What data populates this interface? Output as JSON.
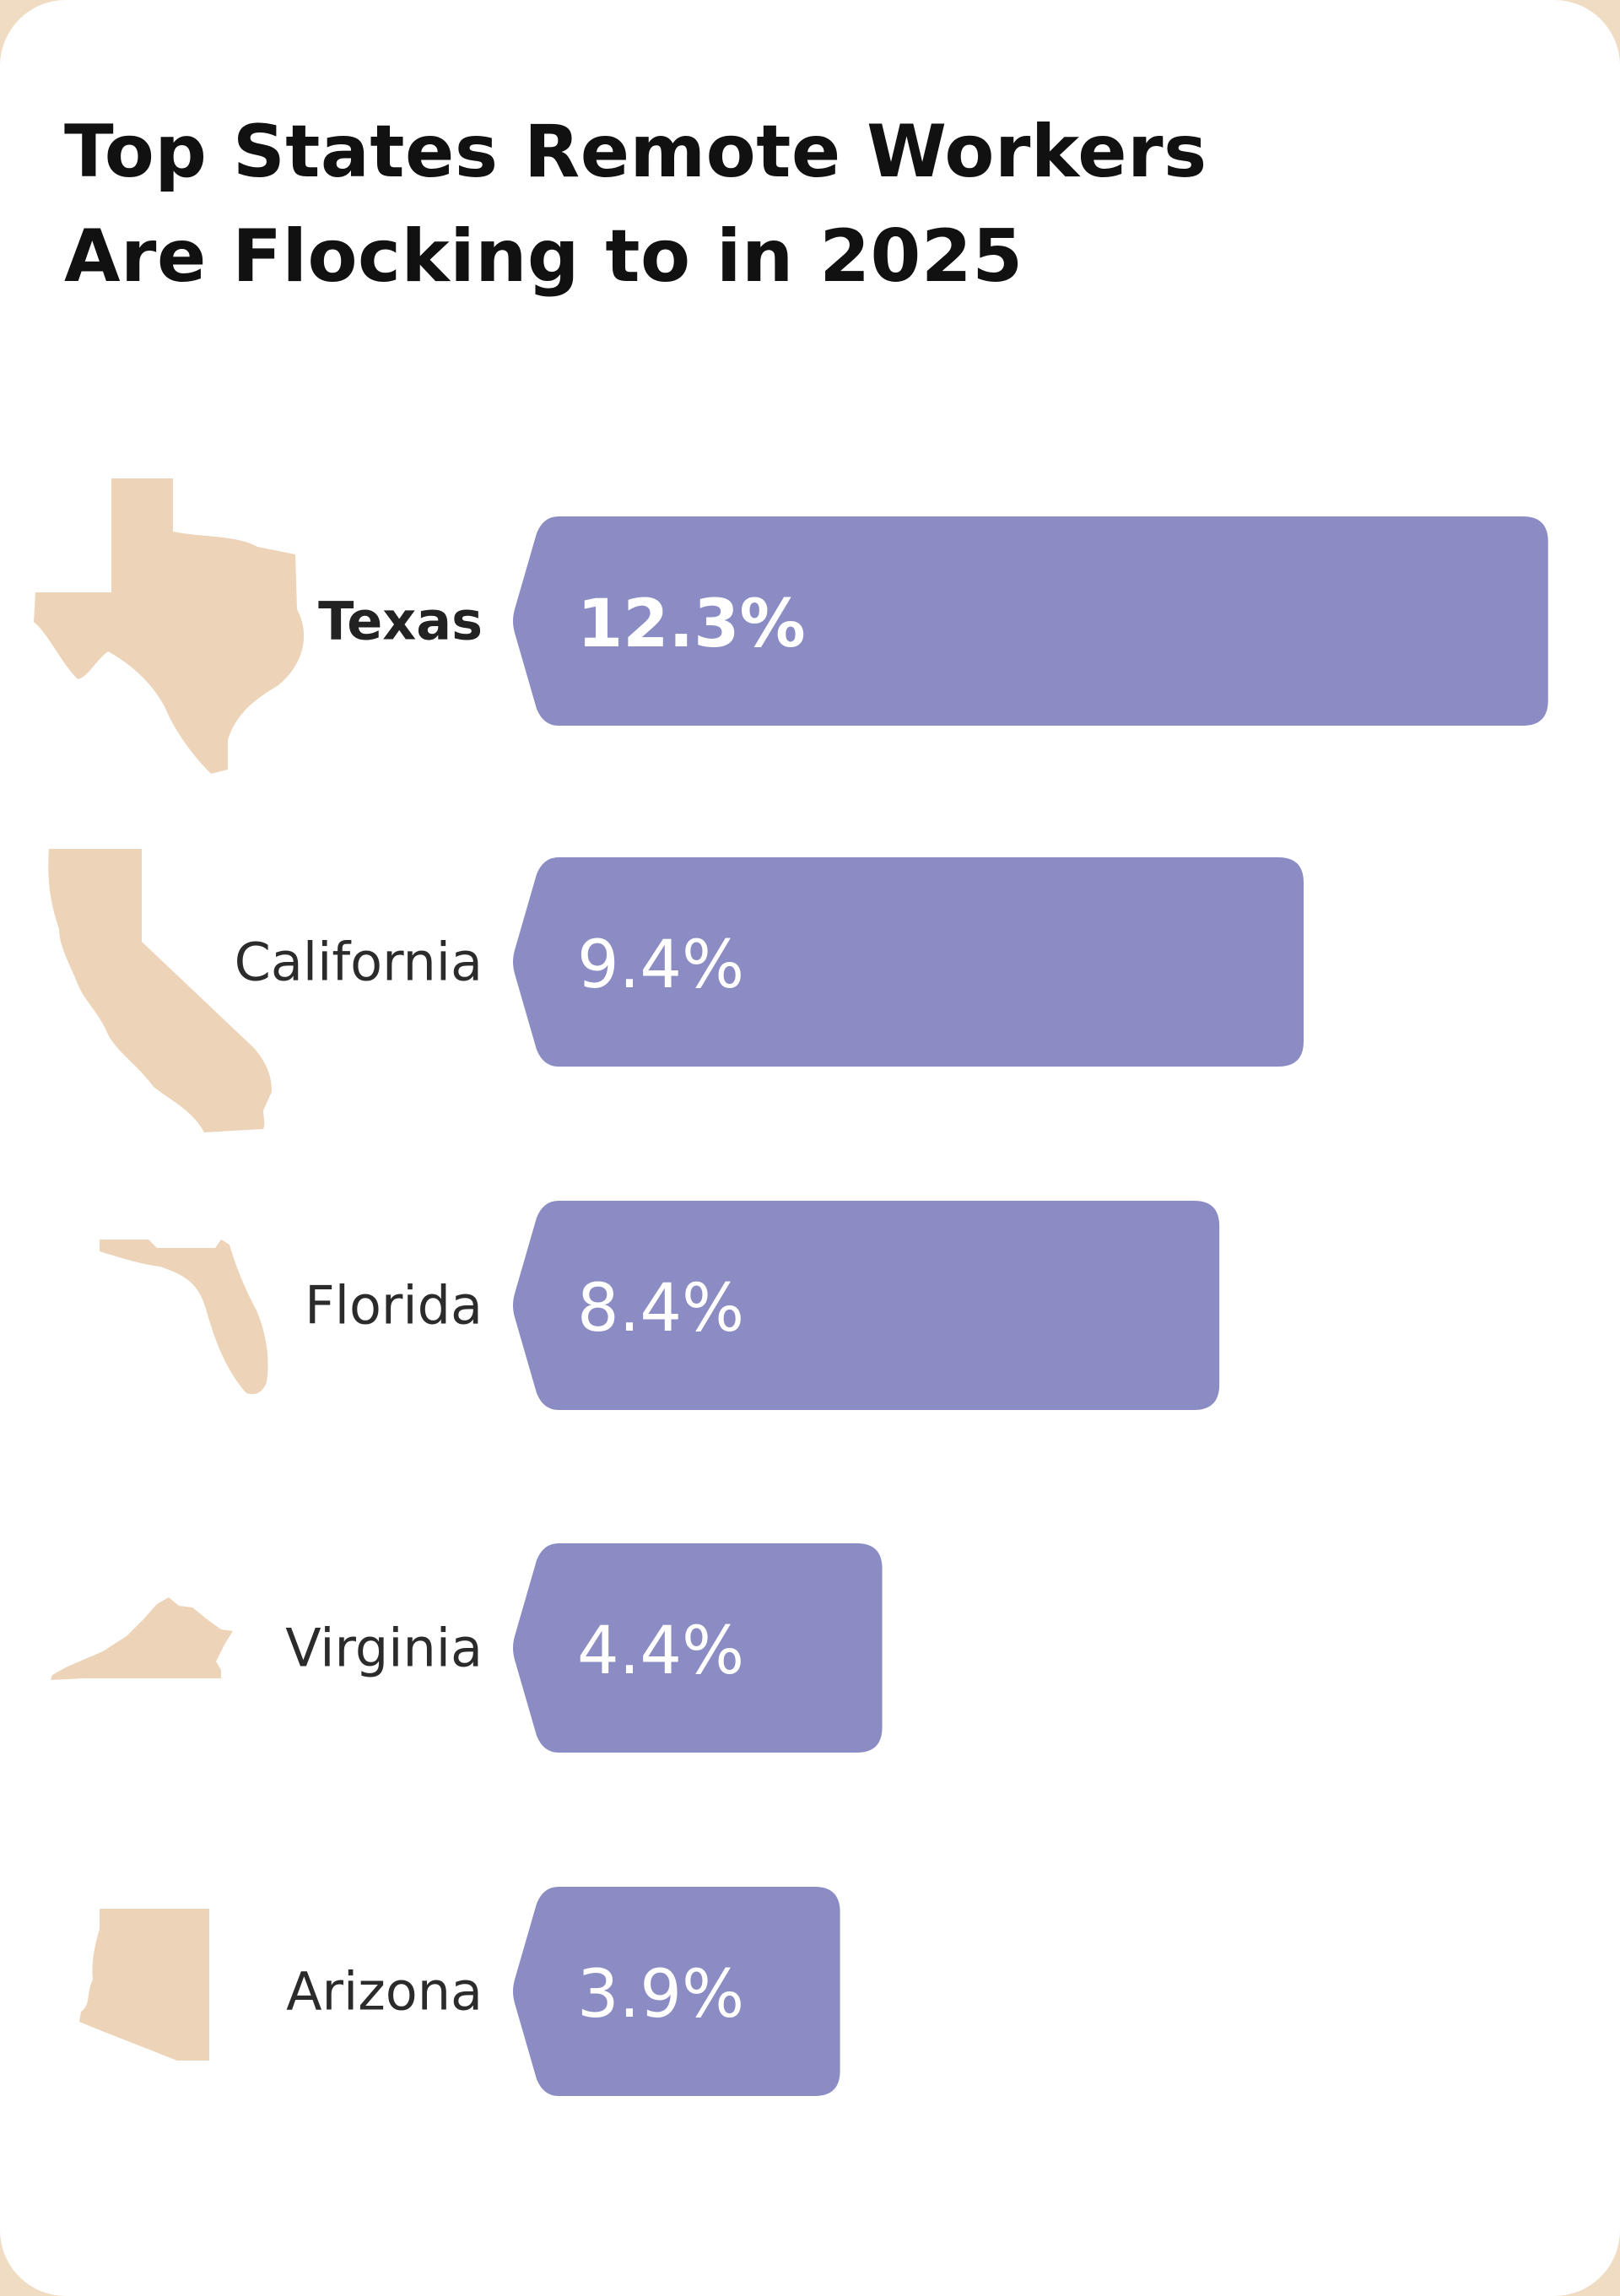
{
  "title_lines": [
    "Top States Remote Workers",
    "Are Flocking to in 2025"
  ],
  "colors": {
    "bar": "#8c8cc4",
    "state_shape": "#edd3b7",
    "background": "#ffffff",
    "frame": "#f0dcc3"
  },
  "chart_data": {
    "type": "bar",
    "orientation": "horizontal",
    "title": "Top States Remote Workers Are Flocking to in 2025",
    "unit": "%",
    "categories": [
      "Texas",
      "California",
      "Florida",
      "Virginia",
      "Arizona"
    ],
    "values": [
      12.3,
      9.4,
      8.4,
      4.4,
      3.9
    ],
    "value_labels": [
      "12.3%",
      "9.4%",
      "8.4%",
      "4.4%",
      "3.9%"
    ],
    "highlighted": "Texas",
    "icons": [
      "texas-state-icon",
      "california-state-icon",
      "florida-state-icon",
      "virginia-state-icon",
      "arizona-state-icon"
    ],
    "grid": false,
    "axes_visible": false
  }
}
